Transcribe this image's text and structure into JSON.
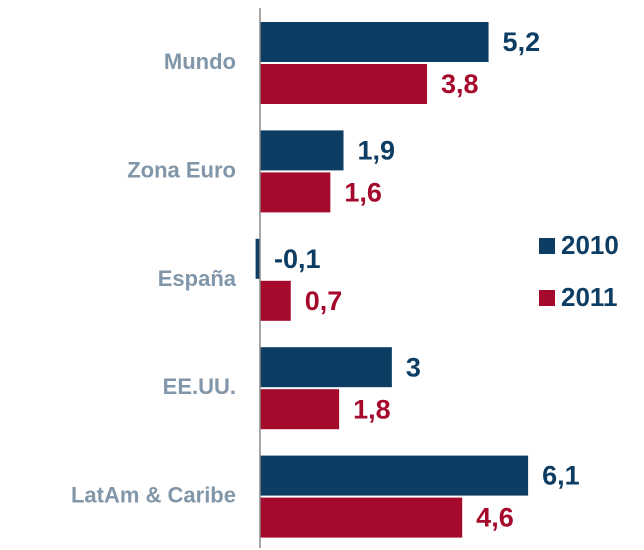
{
  "chart_data": {
    "type": "hbar",
    "categories": [
      "Mundo",
      "Zona Euro",
      "España",
      "EE.UU.",
      "LatAm & Caribe"
    ],
    "series": [
      {
        "name": "2010",
        "color": "#0d3d63",
        "values": [
          5.2,
          1.9,
          -0.1,
          3,
          6.1
        ],
        "value_labels": [
          "5,2",
          "1,9",
          "-0,1",
          "3",
          "6,1"
        ]
      },
      {
        "name": "2011",
        "color": "#a50a2c",
        "values": [
          3.8,
          1.6,
          0.7,
          1.8,
          4.6
        ],
        "value_labels": [
          "3,8",
          "1,6",
          "0,7",
          "1,8",
          "4,6"
        ]
      }
    ],
    "xlim": [
      0,
      8.6
    ],
    "legend": "right"
  }
}
